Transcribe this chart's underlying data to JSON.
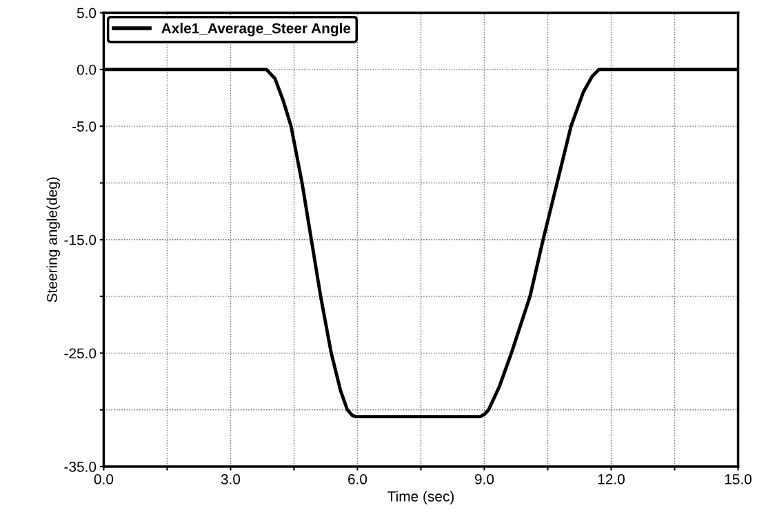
{
  "chart_data": {
    "type": "line",
    "xlabel": "Time (sec)",
    "ylabel": "Steering angle(deg)",
    "xlim": [
      0,
      15
    ],
    "ylim": [
      -35,
      5
    ],
    "xticks": [
      {
        "value": 0,
        "label": "0.0"
      },
      {
        "value": 1.5,
        "label": null
      },
      {
        "value": 3,
        "label": "3.0"
      },
      {
        "value": 4.5,
        "label": null
      },
      {
        "value": 6,
        "label": "6.0"
      },
      {
        "value": 7.5,
        "label": null
      },
      {
        "value": 9,
        "label": "9.0"
      },
      {
        "value": 10.5,
        "label": null
      },
      {
        "value": 12,
        "label": "12.0"
      },
      {
        "value": 13.5,
        "label": null
      },
      {
        "value": 15,
        "label": "15.0"
      }
    ],
    "yticks": [
      {
        "value": 5,
        "label": "5.0"
      },
      {
        "value": 0,
        "label": "0.0"
      },
      {
        "value": -5,
        "label": "-5.0"
      },
      {
        "value": -10,
        "label": null
      },
      {
        "value": -15,
        "label": "-15.0"
      },
      {
        "value": -20,
        "label": null
      },
      {
        "value": -25,
        "label": "-25.0"
      },
      {
        "value": -30,
        "label": null
      },
      {
        "value": -35,
        "label": "-35.0"
      }
    ],
    "grid": true,
    "legend": "top left",
    "marker": "none",
    "line_style": "solid",
    "series": [
      {
        "name": "Axle1_Average_Steer Angle",
        "color": "#000000",
        "x": [
          0,
          3.85,
          4.05,
          4.25,
          4.43,
          4.69,
          4.91,
          5.13,
          5.38,
          5.6,
          5.76,
          5.88,
          5.97,
          8.9,
          9.0,
          9.1,
          9.35,
          9.64,
          10.08,
          10.39,
          10.72,
          11.05,
          11.34,
          11.55,
          11.71,
          15
        ],
        "values": [
          0,
          0,
          -0.8,
          -2.8,
          -5,
          -10,
          -15,
          -20,
          -25,
          -28.3,
          -30,
          -30.5,
          -30.6,
          -30.6,
          -30.4,
          -30,
          -28,
          -25,
          -20,
          -15,
          -10,
          -5,
          -2,
          -0.6,
          0,
          0
        ]
      }
    ]
  }
}
